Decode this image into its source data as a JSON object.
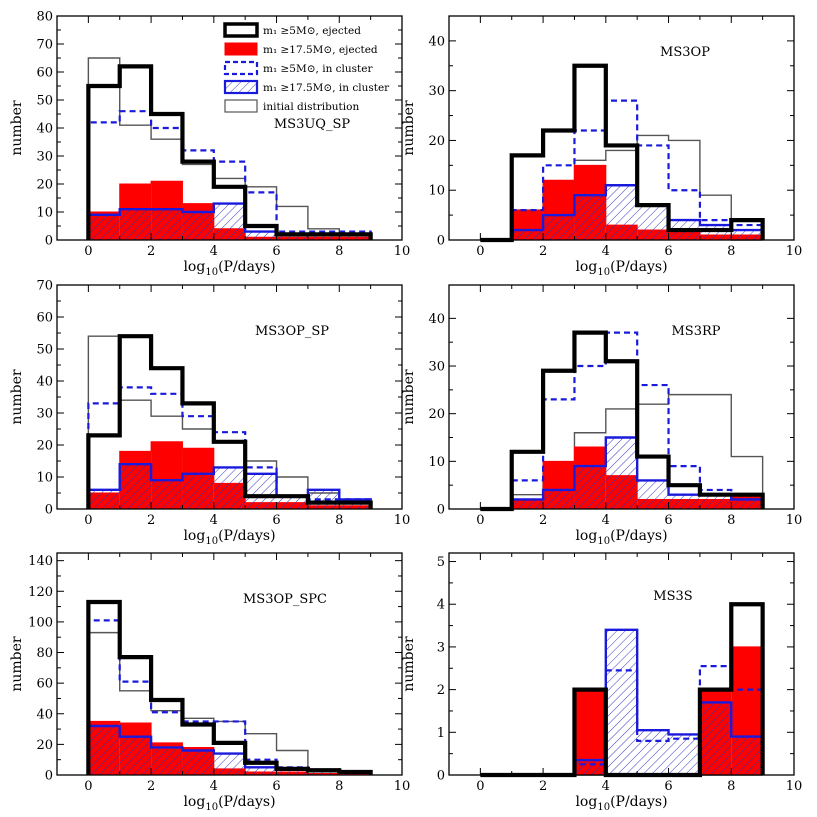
{
  "legend": {
    "items": [
      {
        "key": "ej5",
        "label": "m₁ ≥5M⊙, ejected"
      },
      {
        "key": "ej17",
        "label": "m₁ ≥17.5M⊙, ejected"
      },
      {
        "key": "cl5",
        "label": "m₁ ≥5M⊙, in cluster"
      },
      {
        "key": "cl17",
        "label": "m₁ ≥17.5M⊙, in cluster"
      },
      {
        "key": "init",
        "label": "initial distribution"
      }
    ]
  },
  "colors": {
    "ejected_high": "#ff0000",
    "in_cluster": "#1a1adc",
    "ejected_low": "#000000",
    "initial": "#555555"
  },
  "chart_data": [
    {
      "type": "histogram",
      "title": "MS3UQ_SP",
      "xlabel": "log10(P/days)",
      "ylabel": "number",
      "xlim": [
        -1,
        10
      ],
      "ylim": [
        0,
        80
      ],
      "xticks": [
        0,
        2,
        4,
        6,
        8,
        10
      ],
      "yticks": [
        0,
        10,
        20,
        30,
        40,
        50,
        60,
        70,
        80
      ],
      "bins": [
        0,
        1,
        2,
        3,
        4,
        5,
        6,
        7,
        8,
        9
      ],
      "series": [
        {
          "key": "init",
          "values": [
            65,
            41,
            36,
            27,
            22,
            19,
            12,
            4,
            2
          ]
        },
        {
          "key": "ej17",
          "values": [
            10,
            20,
            21,
            13,
            4,
            1,
            1,
            1,
            1
          ]
        },
        {
          "key": "cl17",
          "values": [
            9,
            11,
            11,
            10,
            13,
            3,
            2,
            2,
            2
          ]
        },
        {
          "key": "cl5",
          "values": [
            42,
            46,
            40,
            32,
            28,
            17,
            3,
            3,
            3
          ]
        },
        {
          "key": "ej5",
          "values": [
            55,
            62,
            45,
            28,
            19,
            5,
            2,
            2,
            2
          ]
        }
      ]
    },
    {
      "type": "histogram",
      "title": "MS3OP",
      "xlabel": "log10(P/days)",
      "ylabel": "number",
      "xlim": [
        -1,
        10
      ],
      "ylim": [
        0,
        45
      ],
      "xticks": [
        0,
        2,
        4,
        6,
        8,
        10
      ],
      "yticks": [
        0,
        10,
        20,
        30,
        40
      ],
      "bins": [
        0,
        1,
        2,
        3,
        4,
        5,
        6,
        7,
        8,
        9
      ],
      "series": [
        {
          "key": "init",
          "values": [
            0,
            6,
            10,
            16,
            18,
            21,
            20,
            9,
            0
          ]
        },
        {
          "key": "ej17",
          "values": [
            0,
            6,
            12,
            15,
            3,
            2,
            2,
            1,
            1
          ]
        },
        {
          "key": "cl17",
          "values": [
            0,
            2,
            5,
            9,
            11,
            7,
            4,
            3,
            2
          ]
        },
        {
          "key": "cl5",
          "values": [
            0,
            6,
            15,
            22,
            28,
            19,
            10,
            4,
            3
          ]
        },
        {
          "key": "ej5",
          "values": [
            0,
            17,
            22,
            35,
            19,
            7,
            2,
            2,
            4
          ]
        }
      ]
    },
    {
      "type": "histogram",
      "title": "MS3OP_SP",
      "xlabel": "log10(P/days)",
      "ylabel": "number",
      "xlim": [
        -1,
        10
      ],
      "ylim": [
        0,
        70
      ],
      "xticks": [
        0,
        2,
        4,
        6,
        8,
        10
      ],
      "yticks": [
        0,
        10,
        20,
        30,
        40,
        50,
        60,
        70
      ],
      "bins": [
        0,
        1,
        2,
        3,
        4,
        5,
        6,
        7,
        8,
        9
      ],
      "series": [
        {
          "key": "init",
          "values": [
            54,
            34,
            29,
            25,
            21,
            15,
            10,
            5,
            3
          ]
        },
        {
          "key": "ej17",
          "values": [
            5,
            18,
            21,
            19,
            8,
            2,
            2,
            1,
            1
          ]
        },
        {
          "key": "cl17",
          "values": [
            6,
            14,
            9,
            11,
            13,
            11,
            4,
            6,
            3
          ]
        },
        {
          "key": "cl5",
          "values": [
            33,
            38,
            36,
            29,
            24,
            13,
            4,
            3,
            3
          ]
        },
        {
          "key": "ej5",
          "values": [
            23,
            54,
            44,
            33,
            21,
            4,
            4,
            2,
            2
          ]
        }
      ]
    },
    {
      "type": "histogram",
      "title": "MS3RP",
      "xlabel": "log10(P/days)",
      "ylabel": "number",
      "xlim": [
        -1,
        10
      ],
      "ylim": [
        0,
        47
      ],
      "xticks": [
        0,
        2,
        4,
        6,
        8,
        10
      ],
      "yticks": [
        0,
        10,
        20,
        30,
        40
      ],
      "bins": [
        0,
        1,
        2,
        3,
        4,
        5,
        6,
        7,
        8,
        9
      ],
      "series": [
        {
          "key": "init",
          "values": [
            0,
            3,
            8,
            16,
            21,
            22,
            24,
            24,
            11
          ]
        },
        {
          "key": "ej17",
          "values": [
            0,
            2,
            10,
            13,
            7,
            2,
            2,
            2,
            3
          ]
        },
        {
          "key": "cl17",
          "values": [
            0,
            2,
            4,
            9,
            15,
            6,
            3,
            3,
            2
          ]
        },
        {
          "key": "cl5",
          "values": [
            0,
            6,
            23,
            30,
            37,
            26,
            9,
            4,
            2
          ]
        },
        {
          "key": "ej5",
          "values": [
            0,
            12,
            29,
            37,
            31,
            11,
            5,
            3,
            3
          ]
        }
      ]
    },
    {
      "type": "histogram",
      "title": "MS3OP_SPC",
      "xlabel": "log10(P/days)",
      "ylabel": "number",
      "xlim": [
        -1,
        10
      ],
      "ylim": [
        0,
        145
      ],
      "xticks": [
        0,
        2,
        4,
        6,
        8,
        10
      ],
      "yticks": [
        0,
        20,
        40,
        60,
        80,
        100,
        120,
        140
      ],
      "bins": [
        0,
        1,
        2,
        3,
        4,
        5,
        6,
        7,
        8,
        9
      ],
      "series": [
        {
          "key": "init",
          "values": [
            93,
            55,
            42,
            37,
            35,
            27,
            16,
            4,
            2
          ]
        },
        {
          "key": "ej17",
          "values": [
            35,
            34,
            21,
            18,
            4,
            2,
            2,
            1,
            1
          ]
        },
        {
          "key": "cl17",
          "values": [
            32,
            25,
            18,
            16,
            14,
            5,
            4,
            3,
            2
          ]
        },
        {
          "key": "cl5",
          "values": [
            101,
            61,
            41,
            35,
            35,
            10,
            5,
            3,
            2
          ]
        },
        {
          "key": "ej5",
          "values": [
            113,
            77,
            49,
            33,
            21,
            8,
            4,
            3,
            2
          ]
        }
      ]
    },
    {
      "type": "histogram",
      "title": "MS3S",
      "xlabel": "log10(P/days)",
      "ylabel": "number",
      "xlim": [
        -1,
        10
      ],
      "ylim": [
        0,
        5.2
      ],
      "xticks": [
        0,
        2,
        4,
        6,
        8,
        10
      ],
      "yticks": [
        0,
        1,
        2,
        3,
        4,
        5
      ],
      "bins": [
        0,
        1,
        2,
        3,
        4,
        5,
        6,
        7,
        8,
        9
      ],
      "series": [
        {
          "key": "init",
          "values": [
            0,
            0,
            0,
            0,
            0,
            0,
            0,
            0,
            0
          ]
        },
        {
          "key": "ej17",
          "values": [
            0,
            0,
            0,
            2,
            0,
            0,
            0,
            2,
            3
          ]
        },
        {
          "key": "cl17",
          "values": [
            0,
            0,
            0,
            0.35,
            3.4,
            1.05,
            0.95,
            1.7,
            0.9
          ]
        },
        {
          "key": "cl5",
          "values": [
            0,
            0,
            0,
            0.25,
            2.45,
            0.8,
            0.85,
            2.55,
            2.0
          ]
        },
        {
          "key": "ej5",
          "values": [
            0,
            0,
            0,
            2,
            0,
            0,
            0,
            2,
            4
          ]
        }
      ]
    }
  ]
}
